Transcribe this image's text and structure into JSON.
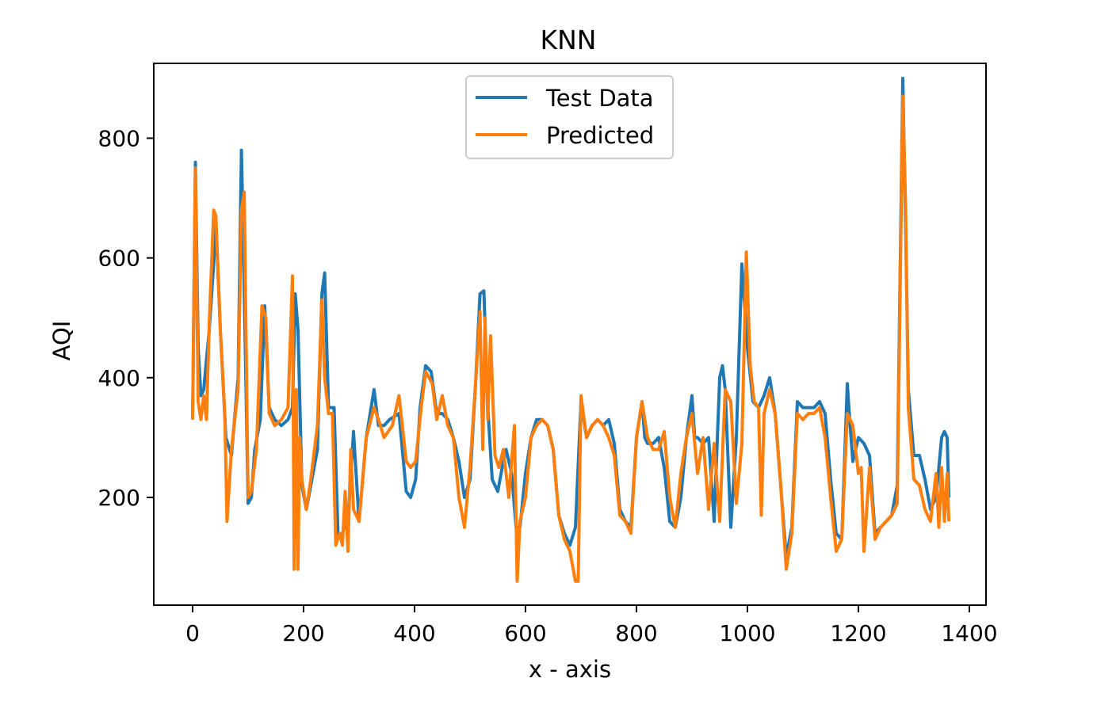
{
  "chart_data": {
    "type": "line",
    "title": "KNN",
    "xlabel": "x - axis",
    "ylabel": "AQI",
    "xlim": [
      -70,
      1430
    ],
    "ylim": [
      20,
      925
    ],
    "xticks": [
      0,
      200,
      400,
      600,
      800,
      1000,
      1200,
      1400
    ],
    "yticks": [
      200,
      400,
      600,
      800
    ],
    "legend_position": "upper center",
    "grid": false,
    "series": [
      {
        "name": "Test Data",
        "color": "#1f77b4",
        "x": [
          0,
          5,
          10,
          15,
          20,
          30,
          38,
          42,
          50,
          60,
          70,
          82,
          88,
          92,
          100,
          106,
          112,
          122,
          130,
          138,
          148,
          160,
          172,
          180,
          185,
          190,
          197,
          205,
          215,
          225,
          233,
          238,
          245,
          255,
          262,
          268,
          275,
          282,
          290,
          300,
          313,
          327,
          335,
          345,
          355,
          372,
          385,
          393,
          402,
          410,
          420,
          430,
          440,
          450,
          460,
          470,
          480,
          490,
          500,
          510,
          518,
          525,
          532,
          540,
          550,
          558,
          565,
          575,
          583,
          590,
          600,
          610,
          620,
          630,
          640,
          650,
          660,
          670,
          680,
          690,
          700,
          710,
          720,
          730,
          740,
          750,
          760,
          770,
          780,
          790,
          800,
          810,
          815,
          820,
          830,
          840,
          850,
          860,
          870,
          880,
          890,
          900,
          905,
          910,
          920,
          930,
          940,
          950,
          955,
          960,
          970,
          980,
          990,
          1000,
          1010,
          1020,
          1030,
          1040,
          1050,
          1060,
          1070,
          1080,
          1090,
          1100,
          1110,
          1120,
          1130,
          1140,
          1150,
          1160,
          1170,
          1180,
          1185,
          1190,
          1200,
          1210,
          1220,
          1230,
          1240,
          1250,
          1260,
          1270,
          1280,
          1285,
          1290,
          1300,
          1310,
          1320,
          1330,
          1340,
          1350,
          1355,
          1360,
          1363
        ],
        "values": [
          330,
          760,
          450,
          370,
          380,
          480,
          590,
          660,
          480,
          300,
          270,
          400,
          780,
          600,
          190,
          200,
          280,
          330,
          520,
          350,
          330,
          320,
          330,
          350,
          540,
          480,
          220,
          180,
          230,
          280,
          540,
          575,
          350,
          350,
          140,
          130,
          160,
          190,
          310,
          160,
          300,
          380,
          320,
          320,
          330,
          340,
          210,
          200,
          230,
          350,
          420,
          410,
          340,
          340,
          330,
          300,
          260,
          200,
          230,
          390,
          540,
          545,
          350,
          230,
          210,
          250,
          280,
          240,
          150,
          150,
          240,
          300,
          330,
          330,
          320,
          280,
          170,
          140,
          120,
          150,
          360,
          300,
          320,
          330,
          320,
          330,
          290,
          180,
          160,
          150,
          300,
          360,
          300,
          290,
          290,
          300,
          250,
          160,
          150,
          200,
          300,
          370,
          300,
          300,
          290,
          300,
          160,
          400,
          420,
          380,
          150,
          300,
          590,
          450,
          360,
          350,
          370,
          400,
          340,
          220,
          100,
          150,
          360,
          350,
          350,
          350,
          360,
          340,
          230,
          140,
          130,
          390,
          320,
          260,
          300,
          290,
          270,
          140,
          150,
          160,
          170,
          220,
          900,
          660,
          380,
          270,
          270,
          230,
          180,
          200,
          300,
          310,
          300,
          200
        ]
      },
      {
        "name": "Predicted",
        "color": "#ff7f0e",
        "x": [
          0,
          5,
          10,
          15,
          20,
          25,
          30,
          38,
          42,
          50,
          58,
          62,
          70,
          82,
          88,
          93,
          100,
          106,
          115,
          125,
          132,
          138,
          148,
          160,
          172,
          180,
          183,
          187,
          190,
          193,
          197,
          205,
          213,
          225,
          233,
          238,
          245,
          252,
          258,
          265,
          270,
          275,
          280,
          285,
          290,
          300,
          313,
          327,
          335,
          345,
          360,
          372,
          385,
          393,
          402,
          412,
          420,
          432,
          440,
          450,
          460,
          470,
          480,
          490,
          500,
          510,
          518,
          523,
          527,
          532,
          537,
          545,
          552,
          560,
          570,
          580,
          585,
          590,
          600,
          610,
          620,
          630,
          640,
          650,
          660,
          670,
          680,
          690,
          695,
          700,
          710,
          720,
          730,
          740,
          750,
          760,
          770,
          780,
          790,
          800,
          810,
          820,
          830,
          840,
          850,
          860,
          870,
          880,
          890,
          900,
          910,
          920,
          930,
          940,
          950,
          960,
          970,
          980,
          990,
          998,
          1005,
          1012,
          1020,
          1025,
          1030,
          1040,
          1050,
          1060,
          1070,
          1080,
          1090,
          1100,
          1110,
          1120,
          1130,
          1140,
          1150,
          1160,
          1170,
          1180,
          1190,
          1200,
          1205,
          1210,
          1220,
          1230,
          1240,
          1250,
          1260,
          1270,
          1280,
          1285,
          1290,
          1300,
          1310,
          1320,
          1330,
          1340,
          1345,
          1350,
          1355,
          1360,
          1363
        ],
        "values": [
          330,
          750,
          360,
          330,
          370,
          330,
          490,
          680,
          670,
          480,
          340,
          160,
          280,
          380,
          680,
          710,
          200,
          210,
          280,
          520,
          500,
          340,
          320,
          330,
          350,
          570,
          80,
          380,
          80,
          300,
          230,
          180,
          230,
          320,
          530,
          400,
          340,
          340,
          120,
          140,
          120,
          210,
          110,
          280,
          180,
          160,
          300,
          350,
          330,
          300,
          320,
          370,
          260,
          250,
          260,
          350,
          410,
          390,
          330,
          370,
          320,
          300,
          200,
          150,
          250,
          390,
          510,
          280,
          500,
          330,
          470,
          270,
          250,
          280,
          200,
          320,
          60,
          160,
          200,
          300,
          320,
          330,
          320,
          280,
          170,
          130,
          110,
          60,
          60,
          370,
          300,
          320,
          330,
          320,
          300,
          270,
          170,
          160,
          140,
          300,
          360,
          300,
          280,
          280,
          310,
          200,
          150,
          240,
          300,
          340,
          240,
          300,
          180,
          290,
          160,
          380,
          360,
          190,
          290,
          610,
          420,
          360,
          350,
          170,
          340,
          380,
          340,
          220,
          80,
          140,
          340,
          330,
          340,
          340,
          350,
          300,
          200,
          110,
          130,
          340,
          320,
          240,
          250,
          110,
          250,
          130,
          150,
          160,
          170,
          190,
          870,
          690,
          350,
          230,
          220,
          180,
          160,
          240,
          150,
          250,
          160,
          240,
          160
        ]
      }
    ]
  }
}
